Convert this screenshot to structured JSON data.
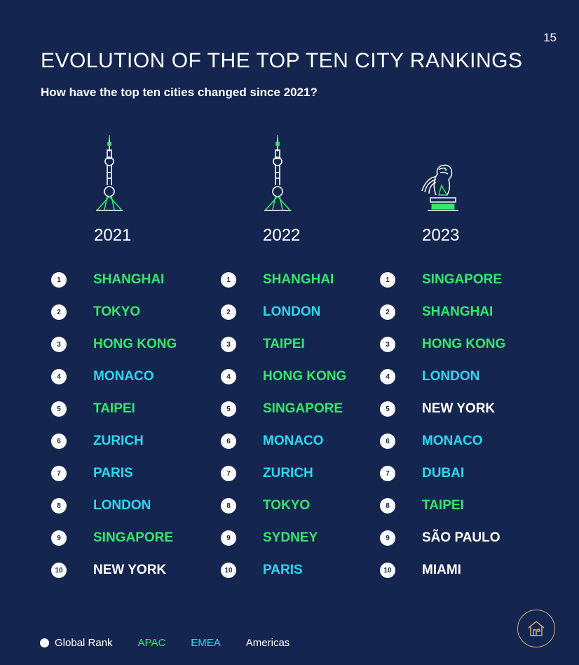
{
  "page_number": "15",
  "title": "EVOLUTION OF THE TOP TEN CITY RANKINGS",
  "subtitle": "How have the top ten cities changed since 2021?",
  "colors": {
    "background": "#14254f",
    "apac": "#34e86a",
    "emea": "#2bd9ef",
    "americas": "#ffffff",
    "accent_gold": "#c9ae7c"
  },
  "columns": [
    {
      "year": "2021",
      "icon": "oriental-pearl-tower-icon",
      "cities": [
        {
          "rank": "1",
          "name": "SHANGHAI",
          "region": "apac"
        },
        {
          "rank": "2",
          "name": "TOKYO",
          "region": "apac"
        },
        {
          "rank": "3",
          "name": "HONG KONG",
          "region": "apac"
        },
        {
          "rank": "4",
          "name": "MONACO",
          "region": "emea"
        },
        {
          "rank": "5",
          "name": "TAIPEI",
          "region": "apac"
        },
        {
          "rank": "6",
          "name": "ZURICH",
          "region": "emea"
        },
        {
          "rank": "7",
          "name": "PARIS",
          "region": "emea"
        },
        {
          "rank": "8",
          "name": "LONDON",
          "region": "emea"
        },
        {
          "rank": "9",
          "name": "SINGAPORE",
          "region": "apac"
        },
        {
          "rank": "10",
          "name": "NEW YORK",
          "region": "americas"
        }
      ]
    },
    {
      "year": "2022",
      "icon": "oriental-pearl-tower-icon",
      "cities": [
        {
          "rank": "1",
          "name": "SHANGHAI",
          "region": "apac"
        },
        {
          "rank": "2",
          "name": "LONDON",
          "region": "emea"
        },
        {
          "rank": "3",
          "name": "TAIPEI",
          "region": "apac"
        },
        {
          "rank": "4",
          "name": "HONG KONG",
          "region": "apac"
        },
        {
          "rank": "5",
          "name": "SINGAPORE",
          "region": "apac"
        },
        {
          "rank": "6",
          "name": "MONACO",
          "region": "emea"
        },
        {
          "rank": "7",
          "name": "ZURICH",
          "region": "emea"
        },
        {
          "rank": "8",
          "name": "TOKYO",
          "region": "apac"
        },
        {
          "rank": "9",
          "name": "SYDNEY",
          "region": "apac"
        },
        {
          "rank": "10",
          "name": "PARIS",
          "region": "emea"
        }
      ]
    },
    {
      "year": "2023",
      "icon": "merlion-icon",
      "cities": [
        {
          "rank": "1",
          "name": "SINGAPORE",
          "region": "apac"
        },
        {
          "rank": "2",
          "name": "SHANGHAI",
          "region": "apac"
        },
        {
          "rank": "3",
          "name": "HONG KONG",
          "region": "apac"
        },
        {
          "rank": "4",
          "name": "LONDON",
          "region": "emea"
        },
        {
          "rank": "5",
          "name": "NEW YORK",
          "region": "americas"
        },
        {
          "rank": "6",
          "name": "MONACO",
          "region": "emea"
        },
        {
          "rank": "7",
          "name": "DUBAI",
          "region": "emea"
        },
        {
          "rank": "8",
          "name": "TAIPEI",
          "region": "apac"
        },
        {
          "rank": "9",
          "name": "SÃO PAULO",
          "region": "americas"
        },
        {
          "rank": "10",
          "name": "MIAMI",
          "region": "americas"
        }
      ]
    }
  ],
  "legend": {
    "global_rank": "Global Rank",
    "apac": "APAC",
    "emea": "EMEA",
    "americas": "Americas"
  },
  "home_button": {
    "icon": "home-icon"
  }
}
